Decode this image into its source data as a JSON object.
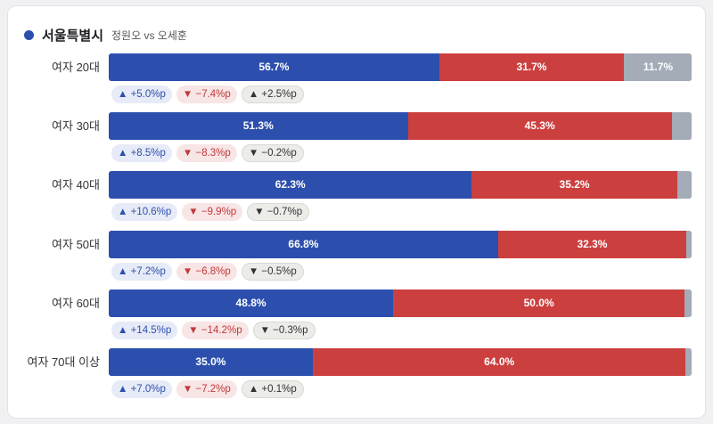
{
  "header": {
    "title": "서울특별시",
    "subtitle": "정원오 vs 오세훈"
  },
  "colors": {
    "blue": "#2c4fae",
    "red": "#cc3f3f",
    "gray": "#a4acb8"
  },
  "chart_data": {
    "type": "bar",
    "stacked": true,
    "orientation": "horizontal",
    "title": "서울특별시",
    "subtitle": "정원오 vs 오세훈",
    "categories": [
      "여자 20대",
      "여자 30대",
      "여자 40대",
      "여자 50대",
      "여자 60대",
      "여자 70대 이상"
    ],
    "series": [
      {
        "color": "#2c4fae",
        "values": [
          56.7,
          51.3,
          62.3,
          66.8,
          48.8,
          35.0
        ],
        "labels": [
          "56.7%",
          "51.3%",
          "62.3%",
          "66.8%",
          "48.8%",
          "35.0%"
        ]
      },
      {
        "color": "#cc3f3f",
        "values": [
          31.7,
          45.3,
          35.2,
          32.3,
          50.0,
          64.0
        ],
        "labels": [
          "31.7%",
          "45.3%",
          "35.2%",
          "32.3%",
          "50.0%",
          "64.0%"
        ]
      },
      {
        "color": "#a4acb8",
        "values": [
          11.7,
          3.4,
          2.5,
          0.9,
          1.2,
          1.0
        ],
        "labels": [
          "11.7%",
          "",
          "",
          "",
          "",
          ""
        ]
      }
    ],
    "changes": [
      [
        "▲ +5.0%p",
        "▼ −7.4%p",
        "▲ +2.5%p"
      ],
      [
        "▲ +8.5%p",
        "▼ −8.3%p",
        "▼ −0.2%p"
      ],
      [
        "▲ +10.6%p",
        "▼ −9.9%p",
        "▼ −0.7%p"
      ],
      [
        "▲ +7.2%p",
        "▼ −6.8%p",
        "▼ −0.5%p"
      ],
      [
        "▲ +14.5%p",
        "▼ −14.2%p",
        "▼ −0.3%p"
      ],
      [
        "▲ +7.0%p",
        "▼ −7.2%p",
        "▲ +0.1%p"
      ]
    ],
    "xlim": [
      0,
      100
    ]
  }
}
